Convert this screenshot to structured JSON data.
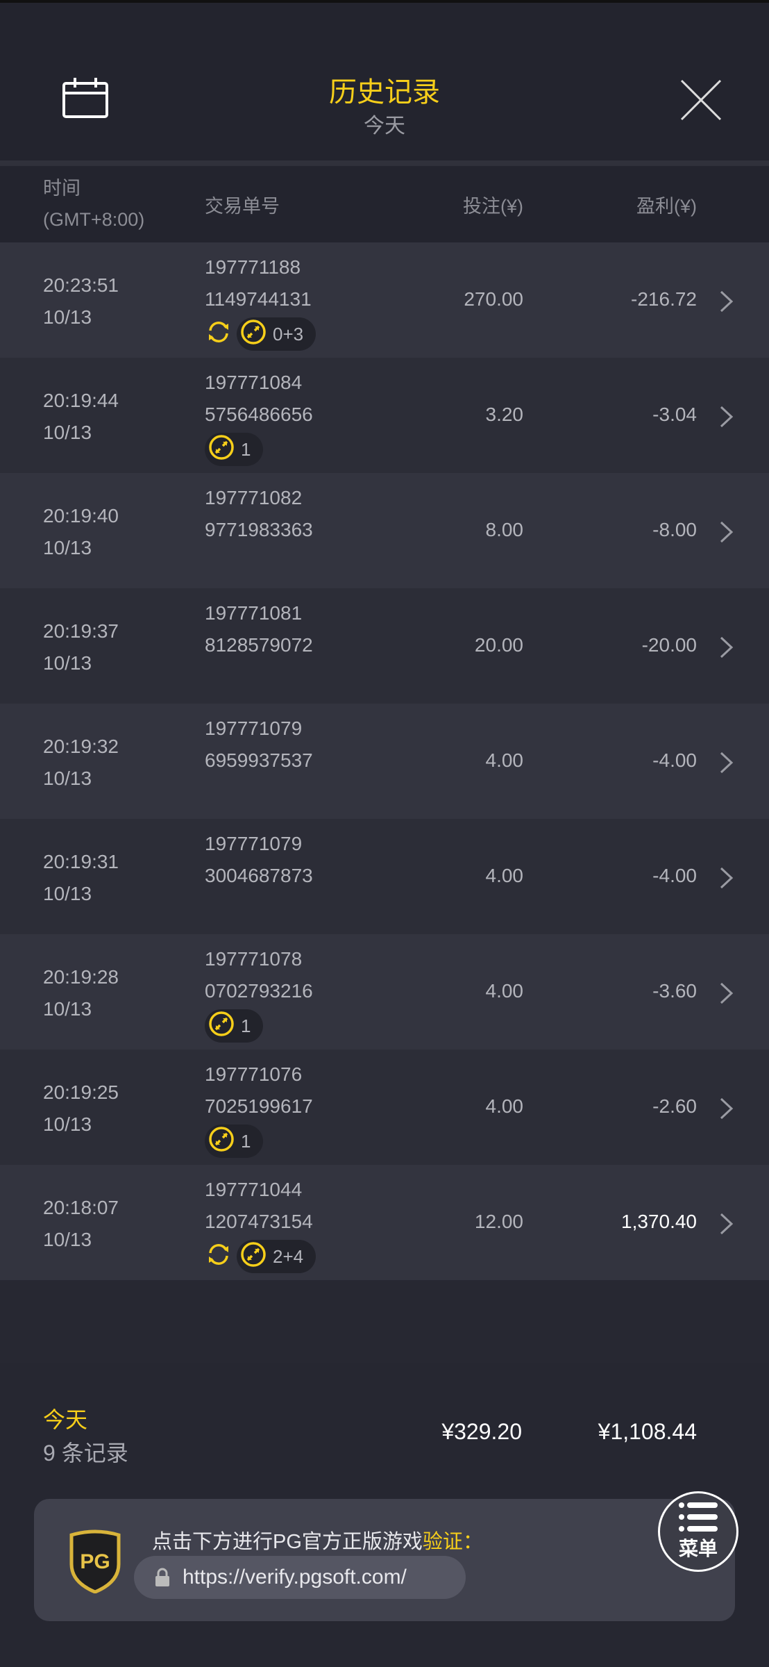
{
  "header": {
    "title": "历史记录",
    "subtitle": "今天",
    "calendar_icon": "calendar-icon",
    "close_icon": "close-icon"
  },
  "columns": {
    "time": "时间",
    "timezone": "(GMT+8:00)",
    "order": "交易单号",
    "bet": "投注(¥)",
    "profit": "盈利(¥)"
  },
  "colors": {
    "accent": "#f7cf1a",
    "background": "#272832"
  },
  "rows": [
    {
      "time": "20:23:51",
      "date": "10/13",
      "order1": "197771188",
      "order2": "1149744131",
      "bet": "270.00",
      "profit": "-216.72",
      "respin": true,
      "feature": "0+3"
    },
    {
      "time": "20:19:44",
      "date": "10/13",
      "order1": "197771084",
      "order2": "5756486656",
      "bet": "3.20",
      "profit": "-3.04",
      "respin": false,
      "feature": "1"
    },
    {
      "time": "20:19:40",
      "date": "10/13",
      "order1": "197771082",
      "order2": "9771983363",
      "bet": "8.00",
      "profit": "-8.00",
      "respin": false,
      "feature": null
    },
    {
      "time": "20:19:37",
      "date": "10/13",
      "order1": "197771081",
      "order2": "8128579072",
      "bet": "20.00",
      "profit": "-20.00",
      "respin": false,
      "feature": null
    },
    {
      "time": "20:19:32",
      "date": "10/13",
      "order1": "197771079",
      "order2": "6959937537",
      "bet": "4.00",
      "profit": "-4.00",
      "respin": false,
      "feature": null
    },
    {
      "time": "20:19:31",
      "date": "10/13",
      "order1": "197771079",
      "order2": "3004687873",
      "bet": "4.00",
      "profit": "-4.00",
      "respin": false,
      "feature": null
    },
    {
      "time": "20:19:28",
      "date": "10/13",
      "order1": "197771078",
      "order2": "0702793216",
      "bet": "4.00",
      "profit": "-3.60",
      "respin": false,
      "feature": "1"
    },
    {
      "time": "20:19:25",
      "date": "10/13",
      "order1": "197771076",
      "order2": "7025199617",
      "bet": "4.00",
      "profit": "-2.60",
      "respin": false,
      "feature": "1"
    },
    {
      "time": "20:18:07",
      "date": "10/13",
      "order1": "197771044",
      "order2": "1207473154",
      "bet": "12.00",
      "profit": "1,370.40",
      "respin": true,
      "feature": "2+4"
    }
  ],
  "footer": {
    "period": "今天",
    "count": "9 条记录",
    "total_bet": "¥329.20",
    "total_profit": "¥1,108.44"
  },
  "verify": {
    "text": "点击下方进行PG官方正版游戏",
    "highlight": "验证：",
    "url": "https://verify.pgsoft.com/",
    "logo": "PG"
  },
  "menu": {
    "label": "菜单"
  }
}
